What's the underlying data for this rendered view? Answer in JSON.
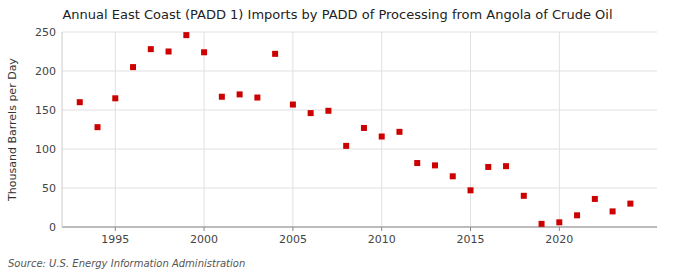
{
  "chart_data": {
    "type": "scatter",
    "title": "Annual East Coast (PADD 1) Imports by PADD of Processing from Angola of Crude Oil",
    "ylabel": "Thousand Barrels per Day",
    "annotations": [
      "Source: U.S. Energy Information Administration"
    ],
    "x": [
      1993,
      1994,
      1995,
      1996,
      1997,
      1998,
      1999,
      2000,
      2001,
      2002,
      2003,
      2004,
      2005,
      2006,
      2007,
      2008,
      2009,
      2010,
      2011,
      2012,
      2013,
      2014,
      2015,
      2016,
      2017,
      2018,
      2019,
      2020,
      2021,
      2022,
      2023,
      2024
    ],
    "values": [
      160,
      128,
      165,
      205,
      228,
      225,
      246,
      224,
      167,
      170,
      166,
      222,
      157,
      146,
      149,
      104,
      127,
      116,
      122,
      82,
      79,
      65,
      47,
      77,
      78,
      40,
      4,
      6,
      15,
      36,
      20,
      30
    ],
    "color": "#cc0000",
    "marker": "square",
    "xlim": [
      1992,
      2025.5
    ],
    "ylim": [
      0,
      250
    ],
    "xticks": [
      1995,
      2000,
      2005,
      2010,
      2015,
      2020
    ],
    "yticks": [
      0,
      50,
      100,
      150,
      200,
      250
    ],
    "grid": true
  }
}
